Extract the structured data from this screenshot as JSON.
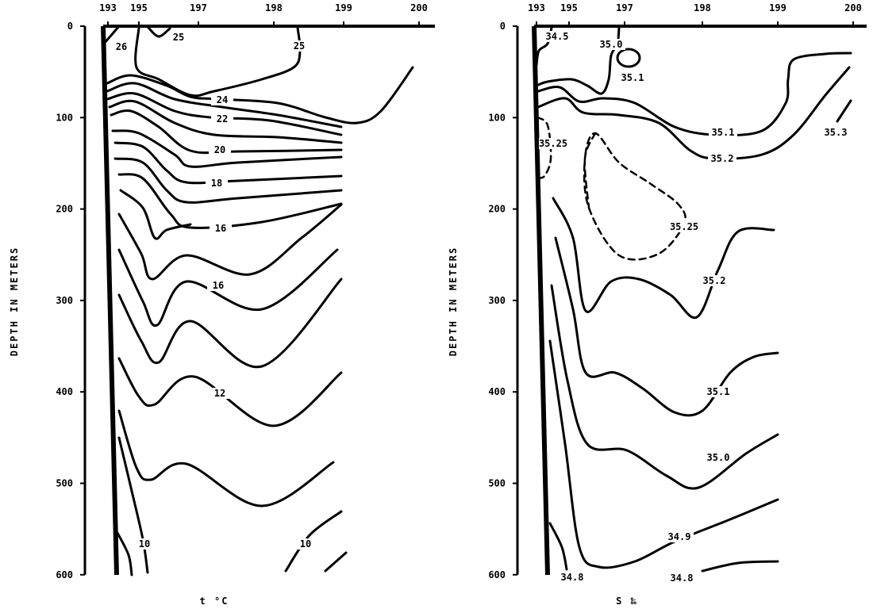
{
  "chart_data": [
    {
      "type": "contour",
      "variable": "temperature",
      "xlabel": "t °C",
      "ylabel": "DEPTH IN METERS",
      "x_ticks": [
        "193",
        "195",
        "197",
        "198",
        "199",
        "200"
      ],
      "y_ticks": [
        "0",
        "100",
        "200",
        "300",
        "400",
        "500",
        "600"
      ],
      "ylim": [
        0,
        600
      ],
      "contour_labels": [
        "26",
        "25",
        "25",
        "24",
        "22",
        "20",
        "18",
        "16",
        "16",
        "12",
        "10",
        "10"
      ]
    },
    {
      "type": "contour",
      "variable": "salinity",
      "xlabel": "S ‰",
      "ylabel": "DEPTH IN METERS",
      "x_ticks": [
        "193",
        "195",
        "197",
        "198",
        "199",
        "200"
      ],
      "y_ticks": [
        "0",
        "100",
        "200",
        "300",
        "400",
        "500",
        "600"
      ],
      "ylim": [
        0,
        600
      ],
      "contour_labels": [
        "34.5",
        "35.0",
        "35.1",
        "35.1",
        "35.2",
        "35.3",
        "35.25",
        "35.25",
        "35.2",
        "35.1",
        "35.0",
        "34.9",
        "34.8",
        "34.8"
      ]
    }
  ]
}
